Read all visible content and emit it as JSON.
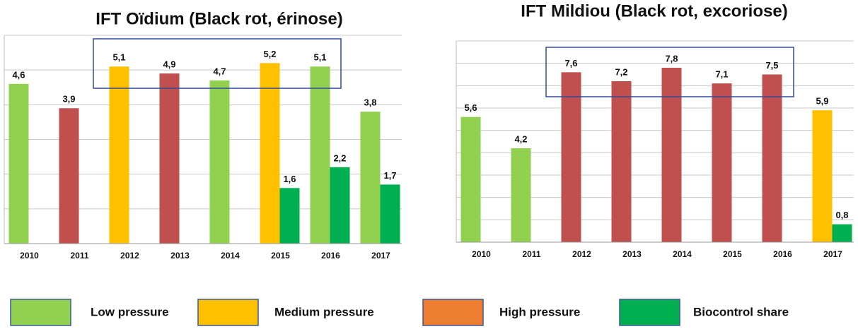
{
  "chart_data": [
    {
      "type": "bar",
      "title": "IFT Oïdium (Black rot, érinose)",
      "categories": [
        "2010",
        "2011",
        "2012",
        "2013",
        "2014",
        "2015",
        "2016",
        "2017"
      ],
      "series": [
        {
          "values": [
            4.6,
            3.9,
            5.1,
            4.9,
            4.7,
            5.2,
            5.1,
            3.8
          ],
          "value_labels": [
            "4,6",
            "3,9",
            "5,1",
            "4,9",
            "4,7",
            "5,2",
            "5,1",
            "3,8"
          ],
          "colors": [
            "#92d050",
            "#c0504d",
            "#ffc000",
            "#c0504d",
            "#92d050",
            "#ffc000",
            "#92d050",
            "#92d050"
          ]
        },
        {
          "name": "Biocontrol share",
          "color": "#00b050",
          "values": [
            null,
            null,
            null,
            null,
            null,
            1.6,
            2.2,
            1.7
          ],
          "value_labels": [
            null,
            null,
            null,
            null,
            null,
            "1,6",
            "2,2",
            "1,7"
          ]
        }
      ],
      "ylim": [
        0,
        6
      ],
      "yticks": [
        0,
        1,
        2,
        3,
        4,
        5,
        6
      ],
      "grid": true
    },
    {
      "type": "bar",
      "title": "IFT Mildiou (Black rot, excoriose)",
      "categories": [
        "2010",
        "2011",
        "2012",
        "2013",
        "2014",
        "2015",
        "2016",
        "2017"
      ],
      "series": [
        {
          "values": [
            5.6,
            4.2,
            7.6,
            7.2,
            7.8,
            7.1,
            7.5,
            5.9
          ],
          "value_labels": [
            "5,6",
            "4,2",
            "7,6",
            "7,2",
            "7,8",
            "7,1",
            "7,5",
            "5,9"
          ],
          "colors": [
            "#92d050",
            "#92d050",
            "#c0504d",
            "#c0504d",
            "#c0504d",
            "#c0504d",
            "#c0504d",
            "#ffc000"
          ]
        },
        {
          "name": "Biocontrol share",
          "color": "#00b050",
          "values": [
            null,
            null,
            null,
            null,
            null,
            null,
            null,
            0.8
          ],
          "value_labels": [
            null,
            null,
            null,
            null,
            null,
            null,
            null,
            "0,8"
          ]
        }
      ],
      "ylim": [
        0,
        9
      ],
      "yticks": [
        0,
        1,
        2,
        3,
        4,
        5,
        6,
        7,
        8,
        9
      ],
      "grid": true
    }
  ],
  "legend": [
    {
      "name": "Low pressure",
      "color": "#92d050"
    },
    {
      "name": "Medium pressure",
      "color": "#ffc000"
    },
    {
      "name": "High pressure",
      "color": "#ed7d31"
    },
    {
      "name": "Biocontrol share",
      "color": "#00b050"
    }
  ]
}
